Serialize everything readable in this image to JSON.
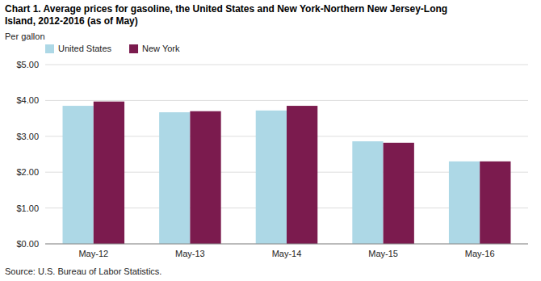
{
  "chart_data": {
    "type": "bar",
    "title": [
      "Chart 1. Average prices for gasoline, the United States and New York-Northern New Jersey-Long",
      "Island, 2012-2016 (as of May)"
    ],
    "ylabel": "Per gallon",
    "source": "Source: U.S. Bureau of Labor Statistics.",
    "categories": [
      "May-12",
      "May-13",
      "May-14",
      "May-15",
      "May-16"
    ],
    "series": [
      {
        "name": "United States",
        "color": "#ADD8E6",
        "values": [
          3.85,
          3.67,
          3.72,
          2.86,
          2.3
        ]
      },
      {
        "name": "New York",
        "color": "#7B1B4E",
        "values": [
          3.97,
          3.7,
          3.85,
          2.82,
          2.3
        ]
      }
    ],
    "ylim": [
      0,
      5.0
    ],
    "yticks": [
      {
        "value": 0.0,
        "label": "$0.00"
      },
      {
        "value": 1.0,
        "label": "$1.00"
      },
      {
        "value": 2.0,
        "label": "$2.00"
      },
      {
        "value": 3.0,
        "label": "$3.00"
      },
      {
        "value": 4.0,
        "label": "$4.00"
      },
      {
        "value": 5.0,
        "label": "$5.00"
      }
    ],
    "grid": true,
    "legend": "upper left"
  }
}
